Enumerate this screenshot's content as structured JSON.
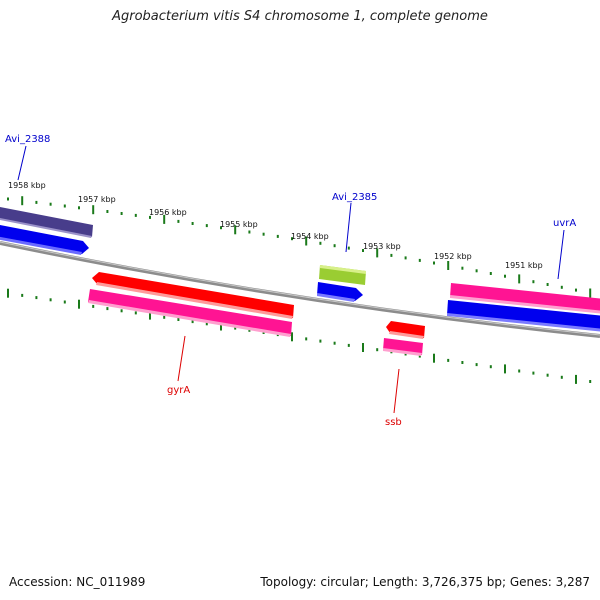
{
  "title": "Agrobacterium vitis S4 chromosome 1, complete genome",
  "footer": {
    "accession": "Accession: NC_011989",
    "stats": "Topology: circular; Length: 3,726,375 bp; Genes: 3,287"
  },
  "kbp_labels": [
    "1958 kbp",
    "1957 kbp",
    "1956 kbp",
    "1955 kbp",
    "1954 kbp",
    "1953 kbp",
    "1952 kbp",
    "1951 kbp"
  ],
  "gene_labels": {
    "Avi_2388": "Avi_2388",
    "Avi_2385": "Avi_2385",
    "uvrA": "uvrA",
    "gyrA": "gyrA",
    "ssb": "ssb"
  },
  "colors": {
    "backbone": "#8a8a8a",
    "ticks": "#1a7a1a",
    "cds_forward": "#0000ee",
    "gene_magenta": "#ff1493",
    "gene_red": "#ff0000",
    "gene_lime": "#9acd32",
    "gene_navy": "#483d8b",
    "label_blue": "#0000cc",
    "label_red": "#dd0000"
  }
}
